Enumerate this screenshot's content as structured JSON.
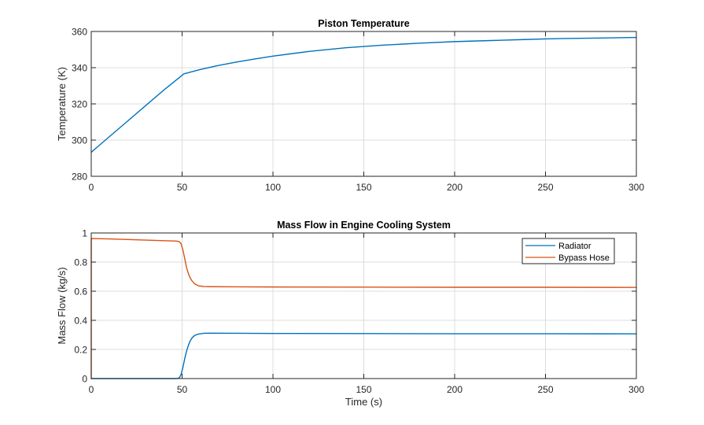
{
  "colors": {
    "radiator": "#0072BD",
    "bypass_hose": "#D95319",
    "background": "#ffffff"
  },
  "chart_data": [
    {
      "type": "line",
      "title": "Piston Temperature",
      "xlabel": "",
      "ylabel": "Temperature (K)",
      "xlim": [
        0,
        300
      ],
      "ylim": [
        280,
        360
      ],
      "xticks": [
        0,
        50,
        100,
        150,
        200,
        250,
        300
      ],
      "xtick_labels": [
        "0",
        "50",
        "100",
        "150",
        "200",
        "250",
        "300"
      ],
      "yticks": [
        280,
        300,
        320,
        340,
        360
      ],
      "ytick_labels": [
        "280",
        "300",
        "320",
        "340",
        "360"
      ],
      "grid": true,
      "series": [
        {
          "name": "Piston Temperature",
          "color": "#0072BD",
          "x": [
            0,
            10,
            20,
            30,
            40,
            50,
            51,
            60,
            70,
            80,
            90,
            100,
            120,
            140,
            150,
            160,
            180,
            200,
            220,
            240,
            250,
            260,
            280,
            300
          ],
          "y": [
            293.3,
            301.9,
            310.5,
            319.1,
            327.7,
            335.8,
            336.6,
            339.0,
            341.2,
            343.1,
            344.8,
            346.4,
            349.0,
            351.0,
            351.7,
            352.4,
            353.5,
            354.4,
            355.0,
            355.6,
            355.9,
            356.1,
            356.4,
            356.7
          ]
        }
      ]
    },
    {
      "type": "line",
      "title": "Mass Flow in Engine Cooling System",
      "xlabel": "Time (s)",
      "ylabel": "Mass Flow (kg/s)",
      "xlim": [
        0,
        300
      ],
      "ylim": [
        0,
        1
      ],
      "xticks": [
        0,
        50,
        100,
        150,
        200,
        250,
        300
      ],
      "xtick_labels": [
        "0",
        "50",
        "100",
        "150",
        "200",
        "250",
        "300"
      ],
      "yticks": [
        0,
        0.2,
        0.4,
        0.6,
        0.8,
        1
      ],
      "ytick_labels": [
        "0",
        "0.2",
        "0.4",
        "0.6",
        "0.8",
        "1"
      ],
      "grid": true,
      "legend": {
        "location": "top-right",
        "entries": [
          "Radiator",
          "Bypass Hose"
        ]
      },
      "series": [
        {
          "name": "Radiator",
          "color": "#0072BD",
          "x": [
            0,
            10,
            20,
            30,
            40,
            47,
            48.5,
            49.5,
            50.5,
            51.5,
            52.5,
            53.5,
            54.5,
            55.5,
            57,
            59,
            62,
            65,
            80,
            100,
            150,
            200,
            250,
            300
          ],
          "y": [
            0,
            0,
            0,
            0,
            0,
            0,
            0.005,
            0.03,
            0.08,
            0.14,
            0.19,
            0.23,
            0.26,
            0.28,
            0.297,
            0.306,
            0.311,
            0.312,
            0.311,
            0.31,
            0.309,
            0.308,
            0.308,
            0.307
          ]
        },
        {
          "name": "Bypass Hose",
          "color": "#D95319",
          "x": [
            0,
            0.01,
            10,
            20,
            30,
            40,
            47,
            48.5,
            49.5,
            50.5,
            51.5,
            52.5,
            53.5,
            54.5,
            55.5,
            57,
            59,
            62,
            65,
            80,
            100,
            150,
            200,
            250,
            300
          ],
          "y": [
            0,
            0.962,
            0.959,
            0.955,
            0.951,
            0.947,
            0.944,
            0.94,
            0.925,
            0.88,
            0.82,
            0.76,
            0.72,
            0.69,
            0.67,
            0.65,
            0.637,
            0.632,
            0.631,
            0.63,
            0.629,
            0.628,
            0.627,
            0.627,
            0.626
          ]
        }
      ]
    }
  ]
}
